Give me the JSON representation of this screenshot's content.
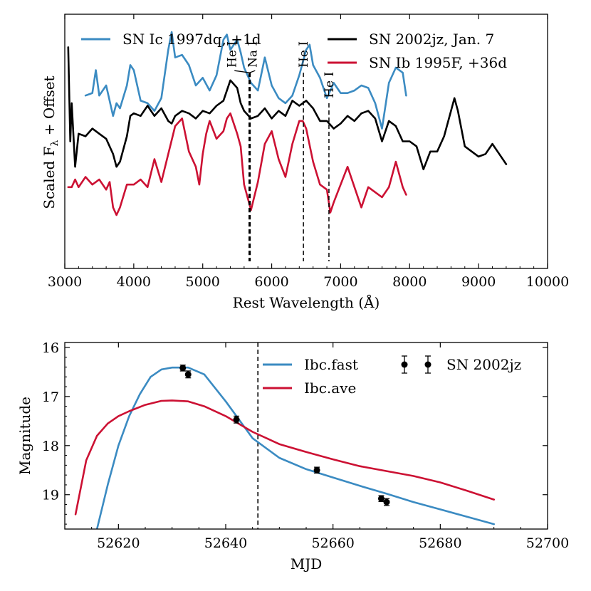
{
  "colors": {
    "ic": "#3b8bc2",
    "jz": "#000000",
    "ib": "#cc1133",
    "fast": "#3b8bc2",
    "ave": "#cc1133",
    "points": "#000000"
  },
  "chart_data": [
    {
      "type": "line",
      "title": "",
      "xlabel": "Rest Wavelength (Å)",
      "ylabel": "Scaled Fλ + Offset",
      "ylabel_main": "Scaled F",
      "ylabel_sub": "λ",
      "ylabel_tail": " + Offset",
      "xlim": [
        3000,
        10000
      ],
      "ylim": [
        0,
        10
      ],
      "x_ticks": [
        3000,
        4000,
        5000,
        6000,
        7000,
        8000,
        9000,
        10000
      ],
      "legend": [
        {
          "key": "ic",
          "label": "SN Ic 1997dq, +1d"
        },
        {
          "key": "jz",
          "label": "SN 2002jz, Jan. 7"
        },
        {
          "key": "ib",
          "label": "SN Ib 1995F, +36d"
        }
      ],
      "series": [
        {
          "name": "SN Ic 1997dq, +1d",
          "key": "ic",
          "x": [
            3300,
            3400,
            3450,
            3500,
            3600,
            3700,
            3750,
            3800,
            3900,
            3950,
            4000,
            4100,
            4200,
            4300,
            4400,
            4500,
            4550,
            4600,
            4700,
            4800,
            4900,
            5000,
            5100,
            5200,
            5300,
            5350,
            5400,
            5500,
            5550,
            5600,
            5700,
            5800,
            5900,
            6000,
            6100,
            6200,
            6300,
            6400,
            6500,
            6550,
            6600,
            6700,
            6800,
            6900,
            7000,
            7100,
            7200,
            7300,
            7400,
            7500,
            7600,
            7700,
            7800,
            7900,
            7950
          ],
          "values": [
            6.8,
            6.9,
            7.8,
            6.8,
            7.2,
            6.0,
            6.5,
            6.3,
            7.2,
            8.0,
            7.8,
            6.6,
            6.5,
            6.2,
            6.7,
            8.6,
            9.3,
            8.3,
            8.4,
            8.0,
            7.2,
            7.5,
            7.0,
            7.6,
            9.0,
            9.2,
            8.6,
            9.0,
            8.5,
            7.9,
            7.3,
            7.0,
            8.3,
            7.2,
            6.7,
            6.5,
            6.8,
            7.6,
            8.6,
            8.8,
            8.0,
            7.5,
            6.7,
            7.3,
            6.9,
            6.9,
            7.0,
            7.2,
            7.1,
            6.5,
            5.5,
            7.3,
            7.9,
            7.7,
            6.8
          ]
        },
        {
          "name": "SN 2002jz, Jan. 7",
          "key": "jz",
          "x": [
            3050,
            3080,
            3100,
            3150,
            3200,
            3300,
            3400,
            3500,
            3600,
            3700,
            3750,
            3800,
            3900,
            3950,
            4000,
            4100,
            4200,
            4300,
            4400,
            4500,
            4550,
            4600,
            4700,
            4800,
            4900,
            5000,
            5100,
            5200,
            5300,
            5400,
            5500,
            5550,
            5600,
            5700,
            5800,
            5900,
            6000,
            6100,
            6200,
            6300,
            6400,
            6500,
            6600,
            6700,
            6800,
            6900,
            7000,
            7100,
            7200,
            7300,
            7400,
            7500,
            7600,
            7700,
            7800,
            7900,
            8000,
            8100,
            8200,
            8300,
            8400,
            8500,
            8600,
            8650,
            8700,
            8800,
            8900,
            9000,
            9100,
            9200,
            9300,
            9400
          ],
          "values": [
            8.7,
            5.0,
            6.5,
            4.0,
            5.3,
            5.2,
            5.5,
            5.3,
            5.1,
            4.5,
            4.0,
            4.2,
            5.2,
            6.0,
            6.1,
            6.0,
            6.4,
            6.0,
            6.3,
            5.8,
            5.7,
            6.0,
            6.2,
            6.1,
            5.9,
            6.2,
            6.1,
            6.4,
            6.6,
            7.4,
            7.1,
            6.5,
            6.2,
            5.9,
            6.0,
            6.3,
            5.9,
            6.2,
            6.0,
            6.6,
            6.4,
            6.6,
            6.3,
            5.8,
            5.8,
            5.5,
            5.7,
            6.0,
            5.8,
            6.1,
            6.2,
            5.9,
            5.0,
            5.8,
            5.6,
            5.0,
            5.0,
            4.8,
            3.9,
            4.6,
            4.6,
            5.2,
            6.2,
            6.7,
            6.2,
            4.8,
            4.6,
            4.4,
            4.5,
            4.9,
            4.5,
            4.1
          ]
        },
        {
          "name": "SN Ib 1995F, +36d",
          "key": "ib",
          "x": [
            3050,
            3100,
            3150,
            3200,
            3300,
            3400,
            3500,
            3600,
            3650,
            3700,
            3750,
            3800,
            3900,
            4000,
            4100,
            4200,
            4300,
            4400,
            4500,
            4600,
            4700,
            4800,
            4900,
            4950,
            5000,
            5050,
            5100,
            5200,
            5300,
            5350,
            5400,
            5500,
            5550,
            5600,
            5700,
            5800,
            5900,
            6000,
            6100,
            6200,
            6300,
            6400,
            6450,
            6500,
            6600,
            6700,
            6800,
            6850,
            6900,
            7000,
            7100,
            7200,
            7300,
            7400,
            7500,
            7600,
            7700,
            7800,
            7900,
            7950
          ],
          "values": [
            3.2,
            3.2,
            3.5,
            3.2,
            3.6,
            3.3,
            3.5,
            3.1,
            3.4,
            2.4,
            2.1,
            2.4,
            3.3,
            3.3,
            3.5,
            3.2,
            4.3,
            3.4,
            4.5,
            5.6,
            5.9,
            4.6,
            4.0,
            3.3,
            4.5,
            5.3,
            5.8,
            5.1,
            5.4,
            5.9,
            6.1,
            5.3,
            4.8,
            3.3,
            2.3,
            3.4,
            4.9,
            5.4,
            4.3,
            3.6,
            4.9,
            5.8,
            5.8,
            5.5,
            4.2,
            3.3,
            3.1,
            2.2,
            2.6,
            3.3,
            4.0,
            3.2,
            2.4,
            3.2,
            3.0,
            2.8,
            3.2,
            4.2,
            3.2,
            2.9
          ]
        }
      ],
      "annotations": [
        {
          "label": "He I",
          "x": 5680,
          "y_top": 7.7,
          "style": "dashed-thick",
          "label_x": 5420,
          "label_y": 7.9
        },
        {
          "label": "Na I",
          "x": 5680,
          "y_top": 7.7,
          "style": "dashed-thick",
          "label_x": 5720,
          "label_y": 7.9
        },
        {
          "label": "He I",
          "x": 6460,
          "y_top": 7.7,
          "style": "dashed",
          "label_x": 6460,
          "label_y": 7.9
        },
        {
          "label": "He I",
          "x": 6830,
          "y_top": 6.5,
          "style": "dashed",
          "label_x": 6830,
          "label_y": 6.7
        }
      ]
    },
    {
      "type": "line",
      "title": "",
      "xlabel": "MJD",
      "ylabel": "Magnitude",
      "xlim": [
        52610,
        52700
      ],
      "ylim": [
        19.7,
        15.9
      ],
      "x_ticks": [
        52620,
        52640,
        52660,
        52680,
        52700
      ],
      "y_ticks": [
        16,
        17,
        18,
        19
      ],
      "vline_x": 52646,
      "legend": [
        {
          "key": "fast",
          "label": "Ibc.fast"
        },
        {
          "key": "ave",
          "label": "Ibc.ave"
        },
        {
          "key": "points",
          "label": "SN 2002jz"
        }
      ],
      "series": [
        {
          "name": "Ibc.fast",
          "key": "fast",
          "x": [
            52616,
            52618,
            52620,
            52622,
            52624,
            52626,
            52628,
            52630,
            52633,
            52636,
            52640,
            52645,
            52650,
            52655,
            52660,
            52665,
            52670,
            52675,
            52680,
            52685,
            52690
          ],
          "values": [
            19.7,
            18.8,
            18.0,
            17.4,
            16.95,
            16.6,
            16.45,
            16.41,
            16.41,
            16.55,
            17.1,
            17.85,
            18.25,
            18.48,
            18.65,
            18.82,
            18.98,
            19.15,
            19.3,
            19.45,
            19.6
          ]
        },
        {
          "name": "Ibc.ave",
          "key": "ave",
          "x": [
            52612,
            52614,
            52616,
            52618,
            52620,
            52622,
            52625,
            52628,
            52630,
            52633,
            52636,
            52640,
            52645,
            52650,
            52655,
            52660,
            52665,
            52670,
            52675,
            52680,
            52685,
            52690
          ],
          "values": [
            19.4,
            18.3,
            17.8,
            17.55,
            17.4,
            17.3,
            17.17,
            17.09,
            17.08,
            17.1,
            17.2,
            17.4,
            17.72,
            17.97,
            18.13,
            18.28,
            18.42,
            18.52,
            18.62,
            18.75,
            18.92,
            19.1
          ]
        },
        {
          "name": "SN 2002jz",
          "key": "points",
          "x": [
            52632,
            52633,
            52642,
            52657,
            52669,
            52670
          ],
          "values": [
            16.42,
            16.55,
            17.47,
            18.5,
            19.08,
            19.15
          ],
          "errors": [
            0.06,
            0.07,
            0.07,
            0.06,
            0.06,
            0.07
          ]
        }
      ]
    }
  ]
}
